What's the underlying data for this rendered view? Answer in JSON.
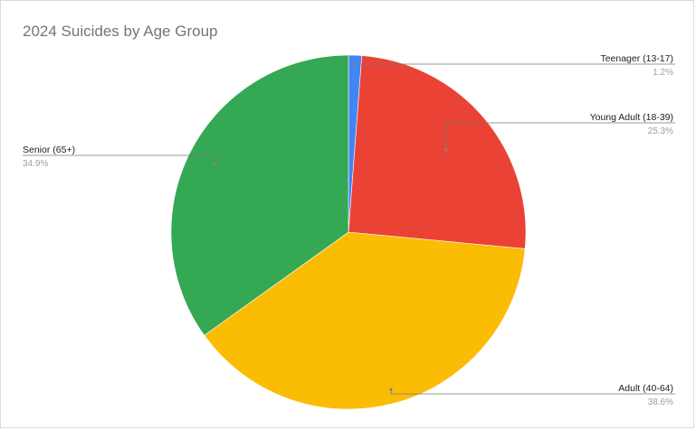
{
  "chart_data": {
    "type": "pie",
    "title": "2024 Suicides by Age Group",
    "slices": [
      {
        "label": "Teenager (13-17)",
        "value": 1.2,
        "value_label": "1.2%",
        "color": "#4285f4"
      },
      {
        "label": "Young Adult (18-39)",
        "value": 25.3,
        "value_label": "25.3%",
        "color": "#ea4335"
      },
      {
        "label": "Adult (40-64)",
        "value": 38.6,
        "value_label": "38.6%",
        "color": "#fbbc04"
      },
      {
        "label": "Senior (65+)",
        "value": 34.9,
        "value_label": "34.9%",
        "color": "#34a853"
      }
    ],
    "legend": "none"
  }
}
